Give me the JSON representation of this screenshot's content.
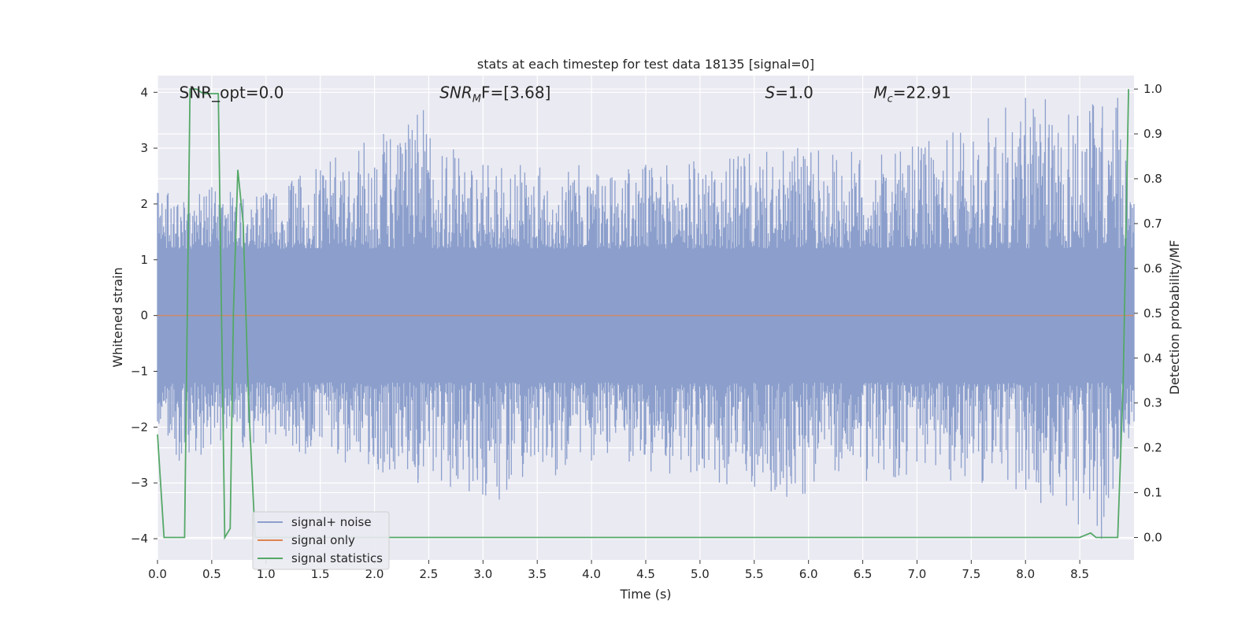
{
  "chart_data": {
    "type": "line",
    "title": "stats at each timestep for test data 18135 [signal=0]",
    "xlabel": "Time (s)",
    "ylabel_left": "Whitened strain",
    "ylabel_right": "Detection probability/MF",
    "xlim": [
      0,
      9.0
    ],
    "ylim_left": [
      -4.38,
      4.3
    ],
    "ylim_right": [
      -0.05,
      1.03
    ],
    "x_ticks": [
      "0.0",
      "0.5",
      "1.0",
      "1.5",
      "2.0",
      "2.5",
      "3.0",
      "3.5",
      "4.0",
      "4.5",
      "5.0",
      "5.5",
      "6.0",
      "6.5",
      "7.0",
      "7.5",
      "8.0",
      "8.5"
    ],
    "y_ticks_left": [
      "−4",
      "−3",
      "−2",
      "−1",
      "0",
      "1",
      "2",
      "3",
      "4"
    ],
    "y_ticks_right": [
      "0.0",
      "0.1",
      "0.2",
      "0.3",
      "0.4",
      "0.5",
      "0.6",
      "0.7",
      "0.8",
      "0.9",
      "1.0"
    ],
    "grid": true,
    "legend_position": "lower-left",
    "annotations": [
      {
        "id": "snr_opt",
        "text": "SNR_opt=0.0",
        "x": 0.2,
        "y": 4.0
      },
      {
        "id": "snr_mf",
        "text": "SNR",
        "sub": "M",
        "tail": "F=[3.68]",
        "x": 2.6,
        "y": 4.0
      },
      {
        "id": "s",
        "text": "S",
        "tail": "=1.0",
        "x": 5.6,
        "y": 4.0
      },
      {
        "id": "mc",
        "text": "M",
        "sub": "c",
        "tail": "=22.91",
        "x": 6.6,
        "y": 4.0
      }
    ],
    "series": [
      {
        "name": "signal+ noise",
        "axis": "left",
        "color": "#8c9fcc",
        "kind": "noise",
        "envelope_upper": [
          [
            0,
            2.2
          ],
          [
            0.5,
            2.3
          ],
          [
            1.0,
            2.2
          ],
          [
            2.45,
            3.68
          ],
          [
            3.0,
            2.7
          ],
          [
            4.5,
            2.7
          ],
          [
            5.9,
            3.0
          ],
          [
            6.8,
            2.9
          ],
          [
            8.0,
            3.9
          ],
          [
            8.85,
            3.9
          ],
          [
            9.0,
            2.0
          ]
        ],
        "envelope_lower": [
          [
            0,
            -1.9
          ],
          [
            0.2,
            -2.6
          ],
          [
            1.0,
            -2.3
          ],
          [
            2.4,
            -3.0
          ],
          [
            3.15,
            -3.3
          ],
          [
            4.0,
            -2.6
          ],
          [
            5.8,
            -3.25
          ],
          [
            6.8,
            -2.9
          ],
          [
            7.6,
            -3.0
          ],
          [
            8.7,
            -4.0
          ],
          [
            9.0,
            -1.9
          ]
        ]
      },
      {
        "name": "signal only",
        "axis": "left",
        "color": "#dd8452",
        "x": [
          0.0,
          9.0
        ],
        "y": [
          0.0,
          0.0
        ]
      },
      {
        "name": "signal statistics",
        "axis": "right",
        "color": "#55a868",
        "x": [
          0.0,
          0.06,
          0.12,
          0.18,
          0.25,
          0.3,
          0.36,
          0.42,
          0.48,
          0.56,
          0.62,
          0.67,
          0.7,
          0.74,
          0.79,
          0.84,
          0.9,
          1.0,
          2.0,
          4.0,
          6.0,
          8.0,
          8.5,
          8.6,
          8.65,
          8.7,
          8.8,
          8.85,
          8.9,
          8.95
        ],
        "y": [
          0.23,
          0.0,
          0.0,
          0.0,
          0.0,
          1.0,
          1.0,
          0.99,
          0.99,
          0.99,
          0.0,
          0.02,
          0.5,
          0.82,
          0.7,
          0.3,
          0.0,
          0.0,
          0.0,
          0.0,
          0.0,
          0.0,
          0.0,
          0.01,
          0.0,
          0.0,
          0.0,
          0.0,
          0.34,
          1.0
        ]
      }
    ]
  }
}
